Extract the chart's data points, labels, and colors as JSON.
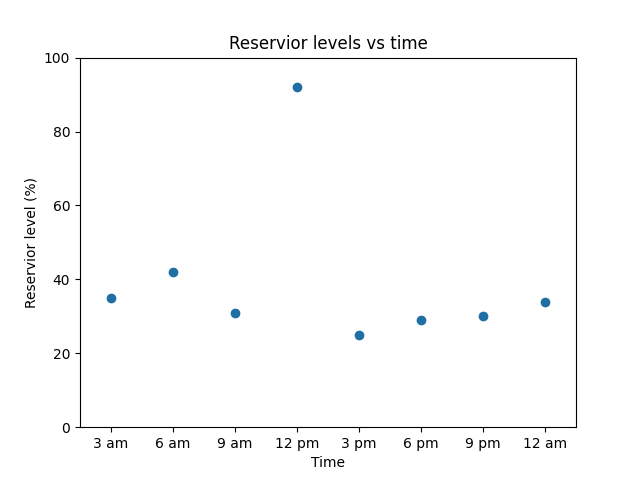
{
  "title": "Reservior levels vs time",
  "xlabel": "Time",
  "ylabel": "Reservior level (%)",
  "x_tick_labels": [
    "3 am",
    "6 am",
    "9 am",
    "12 pm",
    "3 pm",
    "6 pm",
    "9 pm",
    "12 am"
  ],
  "x_values": [
    1,
    2,
    3,
    4,
    5,
    6,
    7,
    8
  ],
  "y_values": [
    35,
    42,
    31,
    92,
    25,
    29,
    30,
    34
  ],
  "ylim": [
    0,
    100
  ],
  "xlim": [
    0.5,
    8.5
  ],
  "marker_color": "#1f6fa4",
  "marker_size": 36,
  "figsize": [
    6.4,
    4.8
  ],
  "dpi": 100
}
